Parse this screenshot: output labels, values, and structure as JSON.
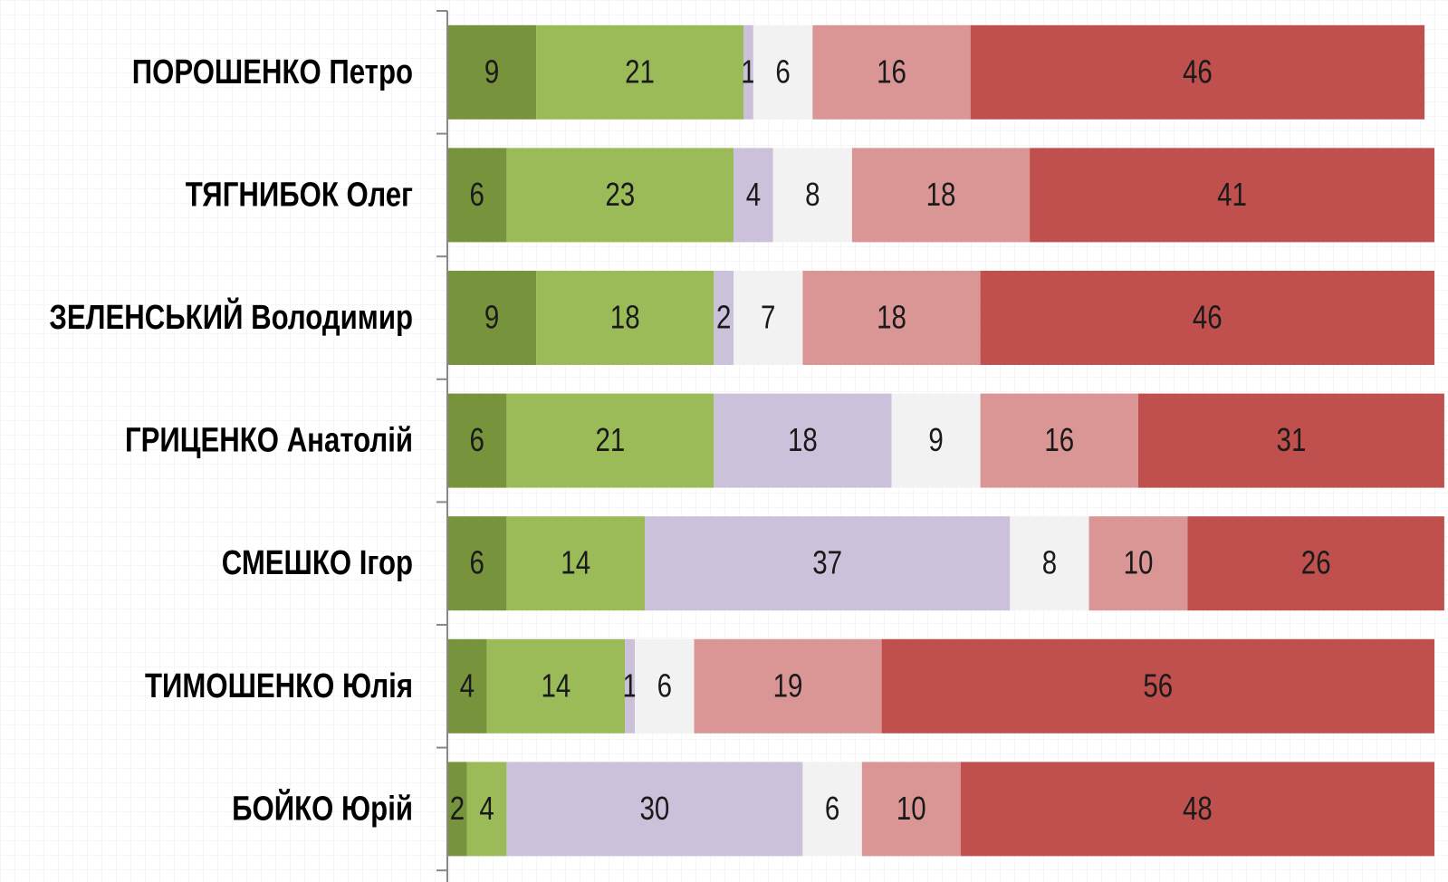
{
  "chart_data": {
    "type": "stacked_barh",
    "categories": [
      "ПОРОШЕНКО Петро",
      "ТЯГНИБОК Олег",
      "ЗЕЛЕНСЬКИЙ Володимир",
      "ГРИЦЕНКО Анатолій",
      "СМЕШКО Ігор",
      "ТИМОШЕНКО Юлія",
      "БОЙКО Юрій"
    ],
    "series": [
      {
        "color": "#77933c",
        "values": [
          9,
          6,
          9,
          6,
          6,
          4,
          2
        ]
      },
      {
        "color": "#9bbb59",
        "values": [
          21,
          23,
          18,
          21,
          14,
          14,
          4
        ]
      },
      {
        "color": "#ccc1da",
        "values": [
          1,
          4,
          2,
          18,
          37,
          1,
          30
        ]
      },
      {
        "color": "#f2f2f2",
        "values": [
          6,
          8,
          7,
          9,
          8,
          6,
          6
        ]
      },
      {
        "color": "#d99694",
        "values": [
          16,
          18,
          18,
          16,
          10,
          19,
          10
        ]
      },
      {
        "color": "#c0504d",
        "values": [
          46,
          41,
          46,
          31,
          26,
          56,
          48
        ]
      }
    ],
    "xlim": [
      0,
      100
    ],
    "data_labels": true
  }
}
